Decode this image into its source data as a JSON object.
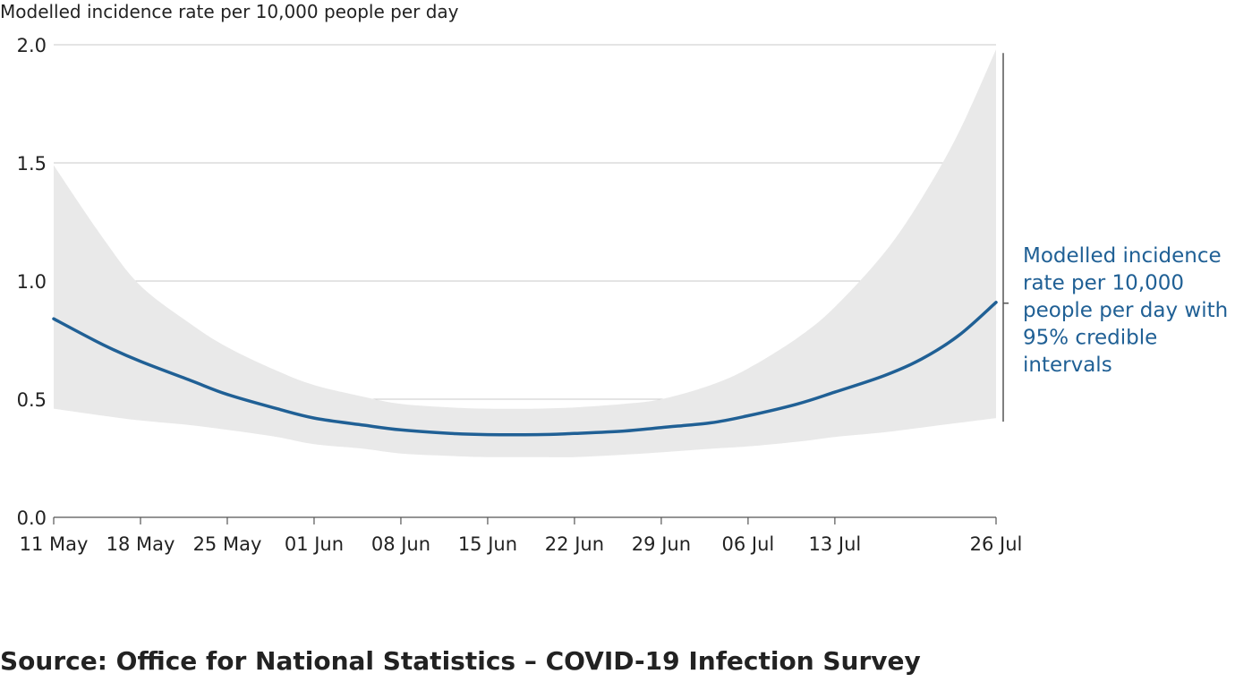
{
  "chart_data": {
    "type": "line",
    "title": "",
    "ylabel": "Modelled incidence rate per 10,000 people per day",
    "xlabel": "",
    "ylim": [
      0,
      2.0
    ],
    "yticks": [
      "0.0",
      "0.5",
      "1.0",
      "1.5",
      "2.0"
    ],
    "ytick_values": [
      0,
      0.5,
      1.0,
      1.5,
      2.0
    ],
    "xlim": [
      "2020-05-11",
      "2020-07-26"
    ],
    "xticks": [
      {
        "label": "11 May",
        "date": "2020-05-11"
      },
      {
        "label": "18 May",
        "date": "2020-05-18"
      },
      {
        "label": "25 May",
        "date": "2020-05-25"
      },
      {
        "label": "01 Jun",
        "date": "2020-06-01"
      },
      {
        "label": "08 Jun",
        "date": "2020-06-08"
      },
      {
        "label": "15 Jun",
        "date": "2020-06-15"
      },
      {
        "label": "22 Jun",
        "date": "2020-06-22"
      },
      {
        "label": "29 Jun",
        "date": "2020-06-29"
      },
      {
        "label": "06 Jul",
        "date": "2020-07-06"
      },
      {
        "label": "13 Jul",
        "date": "2020-07-13"
      },
      {
        "label": "26 Jul",
        "date": "2020-07-26"
      }
    ],
    "grid": true,
    "series": [
      {
        "name": "Modelled incidence rate per 10,000 people per day with 95% credible intervals",
        "color": "#206095",
        "band_color": "#e9e9e9",
        "x": [
          "2020-05-11",
          "2020-05-15",
          "2020-05-18",
          "2020-05-22",
          "2020-05-25",
          "2020-05-29",
          "2020-06-01",
          "2020-06-05",
          "2020-06-08",
          "2020-06-12",
          "2020-06-15",
          "2020-06-19",
          "2020-06-22",
          "2020-06-26",
          "2020-06-29",
          "2020-07-03",
          "2020-07-06",
          "2020-07-10",
          "2020-07-13",
          "2020-07-17",
          "2020-07-20",
          "2020-07-23",
          "2020-07-26"
        ],
        "values": [
          0.84,
          0.73,
          0.66,
          0.58,
          0.52,
          0.46,
          0.42,
          0.39,
          0.37,
          0.355,
          0.35,
          0.35,
          0.355,
          0.365,
          0.38,
          0.4,
          0.43,
          0.48,
          0.53,
          0.6,
          0.67,
          0.77,
          0.91
        ],
        "lower": [
          0.46,
          0.43,
          0.41,
          0.39,
          0.37,
          0.34,
          0.31,
          0.29,
          0.27,
          0.26,
          0.255,
          0.255,
          0.255,
          0.265,
          0.275,
          0.29,
          0.3,
          0.32,
          0.34,
          0.36,
          0.38,
          0.4,
          0.42
        ],
        "upper": [
          1.49,
          1.18,
          0.98,
          0.82,
          0.72,
          0.62,
          0.56,
          0.51,
          0.48,
          0.465,
          0.46,
          0.46,
          0.465,
          0.48,
          0.5,
          0.56,
          0.63,
          0.76,
          0.89,
          1.12,
          1.35,
          1.63,
          1.98
        ]
      }
    ],
    "annotation": {
      "lines": [
        "Modelled incidence",
        "rate per 10,000",
        "people per day with",
        "95% credible",
        "intervals"
      ],
      "color": "#206095"
    }
  },
  "source": "Source: Office for National Statistics – COVID-19 Infection Survey"
}
